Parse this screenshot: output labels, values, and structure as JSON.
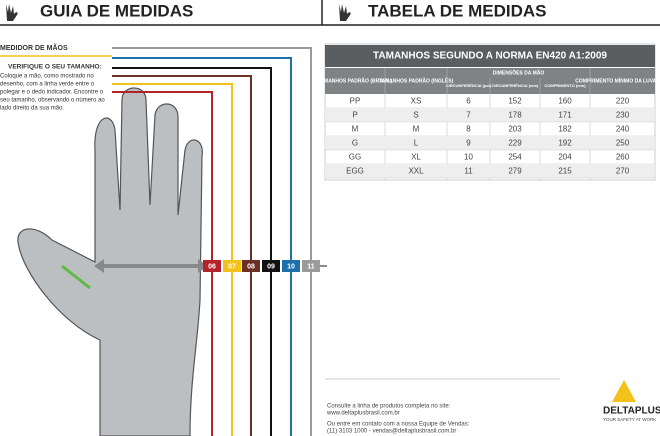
{
  "header": {
    "left_title": "GUIA DE MEDIDAS",
    "right_title": "TABELA DE MEDIDAS"
  },
  "guide": {
    "meter_label": "MEDIDOR DE MÃOS",
    "check_title": "VERIFIQUE O SEU TAMANHO:",
    "instructions": [
      "Coloque a mão, como mostrado no",
      "desenho, com a linha verde entre o",
      "polegar e o dedo indicador. Encontre o",
      "seu tamanho, observando o número ao",
      "lado direito da sua mão."
    ],
    "markers": [
      {
        "label": "06",
        "color": "#b3232b"
      },
      {
        "label": "07",
        "color": "#f2c21b"
      },
      {
        "label": "08",
        "color": "#6b2f23"
      },
      {
        "label": "09",
        "color": "#111111"
      },
      {
        "label": "10",
        "color": "#1f6fa8"
      },
      {
        "label": "11",
        "color": "#9a9a9a"
      }
    ]
  },
  "table": {
    "title": "TAMANHOS SEGUNDO A NORMA EN420 A1:2009",
    "headers": [
      "TAMANHOS PADRÃO (BRASIL)",
      "TAMANHOS PADRÃO (INGLÊS)",
      "DIMENSÕES DA MÃO",
      "COMPRIMENTO MÍNIMO DA LUVA (mm)"
    ],
    "subheaders": [
      "CIRCUNFERÊNCIA (pol)",
      "CIRCUNFERÊNCIA (mm)",
      "COMPRIMENTO (mm)"
    ],
    "rows": [
      [
        "PP",
        "XS",
        "6",
        "152",
        "160",
        "220"
      ],
      [
        "P",
        "S",
        "7",
        "178",
        "171",
        "230"
      ],
      [
        "M",
        "M",
        "8",
        "203",
        "182",
        "240"
      ],
      [
        "G",
        "L",
        "9",
        "229",
        "192",
        "250"
      ],
      [
        "GG",
        "XL",
        "10",
        "254",
        "204",
        "260"
      ],
      [
        "EGG",
        "XXL",
        "11",
        "279",
        "215",
        "270"
      ]
    ]
  },
  "footer": {
    "lines": [
      "Consulte a linha de produtos completa no site:",
      "www.deltaplusbrasil.com.br",
      "Ou entre em contato com a nossa Equipe de Vendas:",
      "(11) 3103 1000 - vendas@deltaplusbrasil.com.br"
    ],
    "brand": "DELTAPLUS",
    "tagline": "YOUR SAFETY AT WORK"
  }
}
